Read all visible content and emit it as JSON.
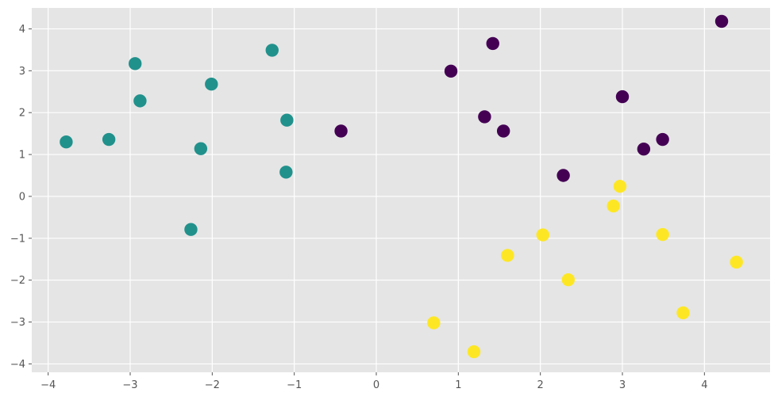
{
  "chart_data": {
    "type": "scatter",
    "title": "",
    "xlabel": "",
    "ylabel": "",
    "xlim": [
      -4.2,
      4.8
    ],
    "ylim": [
      -4.2,
      4.5
    ],
    "grid": true,
    "legend": "none",
    "background_color": "#e5e5e5",
    "grid_color": "#ffffff",
    "x_ticks": [
      -4,
      -3,
      -2,
      -1,
      0,
      1,
      2,
      3,
      4
    ],
    "y_ticks": [
      -4,
      -3,
      -2,
      -1,
      0,
      1,
      2,
      3,
      4
    ],
    "series": [
      {
        "color": "#21918c",
        "points": [
          {
            "x": -3.78,
            "y": 1.3
          },
          {
            "x": -3.26,
            "y": 1.36
          },
          {
            "x": -2.94,
            "y": 3.17
          },
          {
            "x": -2.88,
            "y": 2.28
          },
          {
            "x": -2.26,
            "y": -0.79
          },
          {
            "x": -2.14,
            "y": 1.14
          },
          {
            "x": -2.01,
            "y": 2.68
          },
          {
            "x": -1.27,
            "y": 3.49
          },
          {
            "x": -1.09,
            "y": 1.82
          },
          {
            "x": -1.1,
            "y": 0.58
          }
        ]
      },
      {
        "color": "#440154",
        "points": [
          {
            "x": -0.43,
            "y": 1.56
          },
          {
            "x": 0.91,
            "y": 2.99
          },
          {
            "x": 1.32,
            "y": 1.9
          },
          {
            "x": 1.42,
            "y": 3.65
          },
          {
            "x": 1.55,
            "y": 1.56
          },
          {
            "x": 2.28,
            "y": 0.5
          },
          {
            "x": 3.0,
            "y": 2.38
          },
          {
            "x": 3.26,
            "y": 1.13
          },
          {
            "x": 3.49,
            "y": 1.36
          },
          {
            "x": 4.21,
            "y": 4.18
          }
        ]
      },
      {
        "color": "#fde725",
        "points": [
          {
            "x": 0.7,
            "y": -3.02
          },
          {
            "x": 1.19,
            "y": -3.71
          },
          {
            "x": 1.6,
            "y": -1.41
          },
          {
            "x": 2.03,
            "y": -0.92
          },
          {
            "x": 2.34,
            "y": -1.99
          },
          {
            "x": 2.89,
            "y": -0.23
          },
          {
            "x": 2.97,
            "y": 0.24
          },
          {
            "x": 3.49,
            "y": -0.91
          },
          {
            "x": 3.74,
            "y": -2.78
          },
          {
            "x": 4.39,
            "y": -1.57
          }
        ]
      }
    ]
  }
}
